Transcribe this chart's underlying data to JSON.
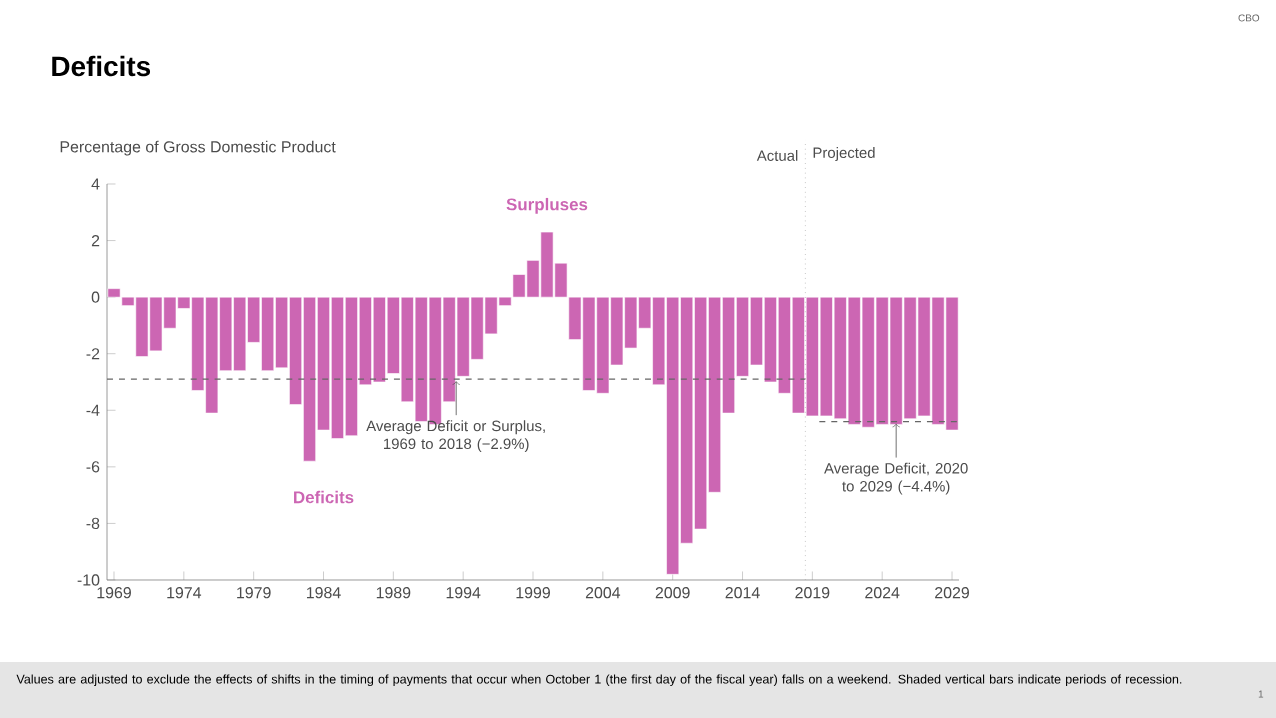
{
  "chart_data": {
    "type": "bar",
    "title": "Deficits",
    "ylabel": "Percentage of Gross Domestic Product",
    "x": [
      1969,
      1970,
      1971,
      1972,
      1973,
      1974,
      1975,
      1976,
      1977,
      1978,
      1979,
      1980,
      1981,
      1982,
      1983,
      1984,
      1985,
      1986,
      1987,
      1988,
      1989,
      1990,
      1991,
      1992,
      1993,
      1994,
      1995,
      1996,
      1997,
      1998,
      1999,
      2000,
      2001,
      2002,
      2003,
      2004,
      2005,
      2006,
      2007,
      2008,
      2009,
      2010,
      2011,
      2012,
      2013,
      2014,
      2015,
      2016,
      2017,
      2018,
      2019,
      2020,
      2021,
      2022,
      2023,
      2024,
      2025,
      2026,
      2027,
      2028,
      2029
    ],
    "values": [
      0.3,
      -0.3,
      -2.1,
      -1.9,
      -1.1,
      -0.4,
      -3.3,
      -4.1,
      -2.6,
      -2.6,
      -1.6,
      -2.6,
      -2.5,
      -3.8,
      -5.8,
      -4.7,
      -5.0,
      -4.9,
      -3.1,
      -3.0,
      -2.7,
      -3.7,
      -4.4,
      -4.5,
      -3.7,
      -2.8,
      -2.2,
      -1.3,
      -0.3,
      0.8,
      1.3,
      2.3,
      1.2,
      -1.5,
      -3.3,
      -3.4,
      -2.4,
      -1.8,
      -1.1,
      -3.1,
      -9.8,
      -8.7,
      -8.2,
      -6.9,
      -4.1,
      -2.8,
      -2.4,
      -3.0,
      -3.4,
      -4.1,
      -4.2,
      -4.2,
      -4.3,
      -4.5,
      -4.6,
      -4.5,
      -4.5,
      -4.3,
      -4.2,
      -4.5,
      -4.7
    ],
    "color": "#cc66b3",
    "xlim": [
      1968.5,
      2029.5
    ],
    "xticks": [
      1969,
      1974,
      1979,
      1984,
      1989,
      1994,
      1999,
      2004,
      2009,
      2014,
      2019,
      2024,
      2029
    ],
    "ylim": [
      -10,
      4
    ],
    "yticks": [
      4,
      2,
      0,
      -2,
      -4,
      -6,
      -8,
      -10
    ],
    "ref_lines": [
      {
        "axis": "y",
        "value": -2.9,
        "label": "Average Deficit or Surplus, 1969 to 2018 (−2.9%)",
        "color": "#666666",
        "line_style": "dashed"
      },
      {
        "axis": "y",
        "value": -4.4,
        "label": "Average Deficit, 2020 to 2029 (−4.4%)",
        "color": "#666666",
        "line_style": "dashed"
      },
      {
        "axis": "x",
        "value": 2018.5,
        "label": null,
        "color": "#aaaaaa",
        "line_style": "dotted"
      }
    ],
    "annotations": [
      "Surpluses",
      "Deficits",
      "Actual",
      "Projected",
      "Values are adjusted to exclude the effects of shifts in the timing of payments that occur when October 1 (the first day of the fiscal year) falls on a weekend. Shaded vertical bars indicate periods of recession.",
      "CBO",
      "1"
    ],
    "grid": false
  }
}
